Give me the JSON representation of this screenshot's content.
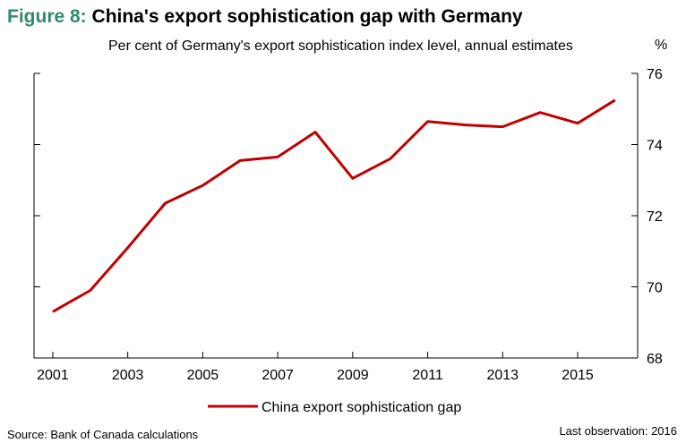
{
  "figure": {
    "number": "Figure 8:",
    "title": "China's export sophistication gap with Germany",
    "subtitle": "Per cent of Germany's export sophistication index level, annual estimates",
    "unit": "%",
    "source": "Source: Bank of Canada calculations",
    "last_observation": "Last observation: 2016"
  },
  "colors": {
    "series": "#c00000",
    "title_accent": "#2e8b6e"
  },
  "chart_data": {
    "type": "line",
    "title": "China's export sophistication gap with Germany",
    "ylabel": "%",
    "xlabel": "",
    "x": [
      2001,
      2002,
      2003,
      2004,
      2005,
      2006,
      2007,
      2008,
      2009,
      2010,
      2011,
      2012,
      2013,
      2014,
      2015,
      2016
    ],
    "series": [
      {
        "name": "China export sophistication gap",
        "values": [
          69.3,
          69.9,
          71.1,
          72.35,
          72.85,
          73.55,
          73.65,
          74.35,
          73.05,
          73.6,
          74.65,
          74.55,
          74.5,
          74.9,
          74.6,
          75.25
        ]
      }
    ],
    "ylim": [
      68,
      76
    ],
    "xlim": [
      2000.5,
      2016.6
    ],
    "x_ticks": [
      2001,
      2003,
      2005,
      2007,
      2009,
      2011,
      2013,
      2015
    ],
    "y_ticks": [
      68,
      70,
      72,
      74,
      76
    ],
    "y_axis_side": "right",
    "grid": false,
    "legend": "bottom-center"
  }
}
